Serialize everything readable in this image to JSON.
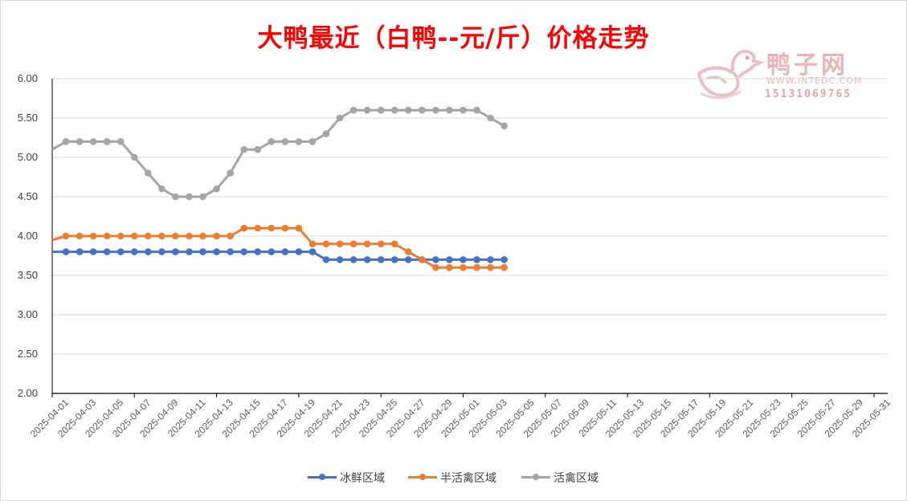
{
  "title": "大鸭最近（白鸭--元/斤）价格走势",
  "watermark": {
    "brand": "鸭子网",
    "url": "WWW.INTEDC.COM",
    "phone": "15131069765"
  },
  "colors": {
    "series_ice": "#4472c4",
    "series_half": "#ed7d31",
    "series_live": "#a5a5a5",
    "title": "#ff0000",
    "grid": "#d9d9d9"
  },
  "chart_data": {
    "type": "line",
    "title": "大鸭最近（白鸭--元/斤）价格走势",
    "ylim": [
      2.0,
      6.0
    ],
    "yticks": [
      "2.00",
      "2.50",
      "3.00",
      "3.50",
      "4.00",
      "4.50",
      "5.00",
      "5.50",
      "6.00"
    ],
    "x_tick_labels": [
      "2025-04-01",
      "2025-04-03",
      "2025-04-05",
      "2025-04-07",
      "2025-04-09",
      "2025-04-11",
      "2025-04-13",
      "2025-04-15",
      "2025-04-17",
      "2025-04-19",
      "2025-04-21",
      "2025-04-23",
      "2025-04-25",
      "2025-04-27",
      "2025-04-29",
      "2025-05-01",
      "2025-05-03",
      "2025-05-05",
      "2025-05-07",
      "2025-05-09",
      "2025-05-11",
      "2025-05-13",
      "2025-05-15",
      "2025-05-17",
      "2025-05-19",
      "2025-05-21",
      "2025-05-23",
      "2025-05-25",
      "2025-05-27",
      "2025-05-29",
      "2025-05-31"
    ],
    "x_range": [
      "2025-03-31",
      "2025-05-31"
    ],
    "grid": true,
    "legend_position": "bottom",
    "series": [
      {
        "name": "冰鲜区域",
        "x": [
          "2025-03-31",
          "2025-04-01",
          "2025-04-02",
          "2025-04-03",
          "2025-04-04",
          "2025-04-05",
          "2025-04-06",
          "2025-04-07",
          "2025-04-08",
          "2025-04-09",
          "2025-04-10",
          "2025-04-11",
          "2025-04-12",
          "2025-04-13",
          "2025-04-14",
          "2025-04-15",
          "2025-04-16",
          "2025-04-17",
          "2025-04-18",
          "2025-04-19",
          "2025-04-20",
          "2025-04-21",
          "2025-04-22",
          "2025-04-23",
          "2025-04-24",
          "2025-04-25",
          "2025-04-26",
          "2025-04-27",
          "2025-04-28",
          "2025-04-29",
          "2025-04-30",
          "2025-05-01",
          "2025-05-02",
          "2025-05-03"
        ],
        "values": [
          3.8,
          3.8,
          3.8,
          3.8,
          3.8,
          3.8,
          3.8,
          3.8,
          3.8,
          3.8,
          3.8,
          3.8,
          3.8,
          3.8,
          3.8,
          3.8,
          3.8,
          3.8,
          3.8,
          3.8,
          3.7,
          3.7,
          3.7,
          3.7,
          3.7,
          3.7,
          3.7,
          3.7,
          3.7,
          3.7,
          3.7,
          3.7,
          3.7,
          3.7
        ],
        "markers_from_index": 1
      },
      {
        "name": "半活禽区域",
        "x": [
          "2025-03-31",
          "2025-04-01",
          "2025-04-02",
          "2025-04-03",
          "2025-04-04",
          "2025-04-05",
          "2025-04-06",
          "2025-04-07",
          "2025-04-08",
          "2025-04-09",
          "2025-04-10",
          "2025-04-11",
          "2025-04-12",
          "2025-04-13",
          "2025-04-14",
          "2025-04-15",
          "2025-04-16",
          "2025-04-17",
          "2025-04-18",
          "2025-04-19",
          "2025-04-20",
          "2025-04-21",
          "2025-04-22",
          "2025-04-23",
          "2025-04-24",
          "2025-04-25",
          "2025-04-26",
          "2025-04-27",
          "2025-04-28",
          "2025-04-29",
          "2025-04-30",
          "2025-05-01",
          "2025-05-02",
          "2025-05-03"
        ],
        "values": [
          3.95,
          4.0,
          4.0,
          4.0,
          4.0,
          4.0,
          4.0,
          4.0,
          4.0,
          4.0,
          4.0,
          4.0,
          4.0,
          4.0,
          4.1,
          4.1,
          4.1,
          4.1,
          4.1,
          3.9,
          3.9,
          3.9,
          3.9,
          3.9,
          3.9,
          3.9,
          3.8,
          3.7,
          3.6,
          3.6,
          3.6,
          3.6,
          3.6,
          3.6
        ],
        "markers_from_index": 1
      },
      {
        "name": "活禽区域",
        "x": [
          "2025-03-31",
          "2025-04-01",
          "2025-04-02",
          "2025-04-03",
          "2025-04-04",
          "2025-04-05",
          "2025-04-06",
          "2025-04-07",
          "2025-04-08",
          "2025-04-09",
          "2025-04-10",
          "2025-04-11",
          "2025-04-12",
          "2025-04-13",
          "2025-04-14",
          "2025-04-15",
          "2025-04-16",
          "2025-04-17",
          "2025-04-18",
          "2025-04-19",
          "2025-04-20",
          "2025-04-21",
          "2025-04-22",
          "2025-04-23",
          "2025-04-24",
          "2025-04-25",
          "2025-04-26",
          "2025-04-27",
          "2025-04-28",
          "2025-04-29",
          "2025-04-30",
          "2025-05-01",
          "2025-05-02",
          "2025-05-03"
        ],
        "values": [
          5.1,
          5.2,
          5.2,
          5.2,
          5.2,
          5.2,
          5.0,
          4.8,
          4.6,
          4.5,
          4.5,
          4.5,
          4.6,
          4.8,
          5.1,
          5.1,
          5.2,
          5.2,
          5.2,
          5.2,
          5.3,
          5.5,
          5.6,
          5.6,
          5.6,
          5.6,
          5.6,
          5.6,
          5.6,
          5.6,
          5.6,
          5.6,
          5.5,
          5.4
        ],
        "markers_from_index": 1
      }
    ]
  }
}
